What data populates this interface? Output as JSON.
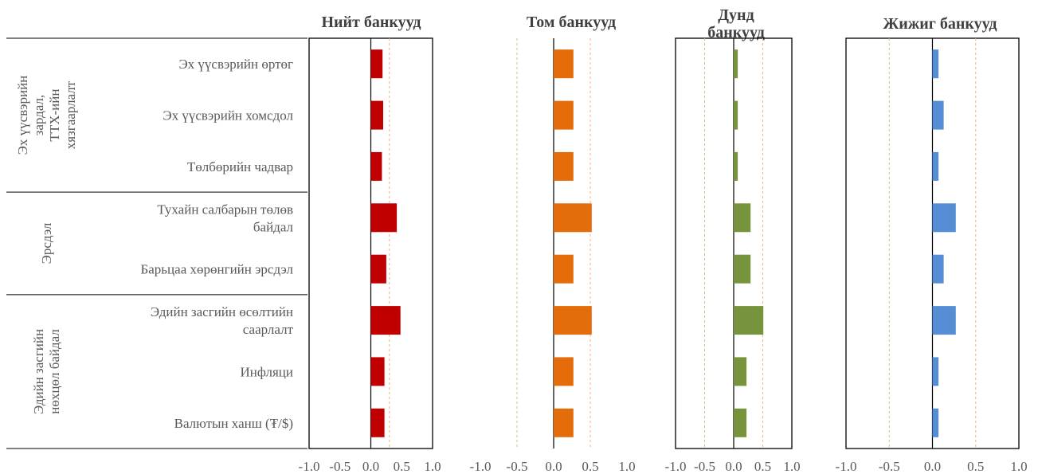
{
  "chart_data": {
    "type": "bar",
    "orientation": "horizontal",
    "row_groups": [
      {
        "lines": [
          "Эх үүсвэрийн",
          "зардал,",
          "ТТХ-ийн",
          "хязгаарлалт"
        ],
        "rows": [
          0,
          1,
          2
        ]
      },
      {
        "lines": [
          "Эрсдэл"
        ],
        "rows": [
          3,
          4
        ]
      },
      {
        "lines": [
          "Эдийн засгийн",
          "нөхцөл байдал"
        ],
        "rows": [
          5,
          6,
          7
        ]
      }
    ],
    "categories": [
      [
        "Эх үүсвэрийн өртөг"
      ],
      [
        "Эх үүсвэрийн хомсдол"
      ],
      [
        "Төлбөрийн чадвар"
      ],
      [
        "Тухайн салбарын төлөв",
        "байдал"
      ],
      [
        "Барьцаа хөрөнгийн эрсдэл"
      ],
      [
        "Эдийн засгийн өсөлтийн",
        "саарлалт"
      ],
      [
        "Инфляци"
      ],
      [
        "Валютын ханш (₮/$)"
      ]
    ],
    "panels": [
      {
        "title": [
          "Нийт банкууд"
        ],
        "color": "#c00000",
        "values": [
          0.19,
          0.2,
          0.18,
          0.42,
          0.25,
          0.48,
          0.22,
          0.22
        ],
        "xlim": [
          -1.0,
          1.0
        ],
        "ticks": [
          "-1.0",
          "-0.5",
          "0.0",
          "0.5",
          "1.0"
        ],
        "ref_lines": [
          0.3
        ],
        "box": true
      },
      {
        "title": [
          "Том банкууд"
        ],
        "color": "#e46c0a",
        "values": [
          0.27,
          0.27,
          0.27,
          0.52,
          0.27,
          0.52,
          0.27,
          0.27
        ],
        "xlim": [
          -1.0,
          1.0
        ],
        "ticks": [
          "-1.0",
          "-0.5",
          "0.0",
          "0.5",
          "1.0"
        ],
        "ref_lines": [
          -0.5,
          0.5
        ],
        "box": false
      },
      {
        "title": [
          "Дунд",
          "банкууд"
        ],
        "color": "#77933c",
        "values": [
          0.07,
          0.07,
          0.07,
          0.29,
          0.29,
          0.51,
          0.22,
          0.22
        ],
        "xlim": [
          -1.0,
          1.0
        ],
        "ticks": [
          "-1.0",
          "-0.5",
          "0.0",
          "0.5",
          "1.0"
        ],
        "ref_lines": [
          -0.5,
          0.5
        ],
        "box": true
      },
      {
        "title": [
          "Жижиг банкууд"
        ],
        "color": "#558ed5",
        "values": [
          0.07,
          0.13,
          0.07,
          0.27,
          0.13,
          0.27,
          0.07,
          0.07
        ],
        "xlim": [
          -1.0,
          1.0
        ],
        "ticks": [
          "-1.0",
          "-0.5",
          "0.0",
          "0.5",
          "1.0"
        ],
        "ref_lines": [
          -0.5,
          0.5
        ],
        "box": true
      }
    ]
  }
}
